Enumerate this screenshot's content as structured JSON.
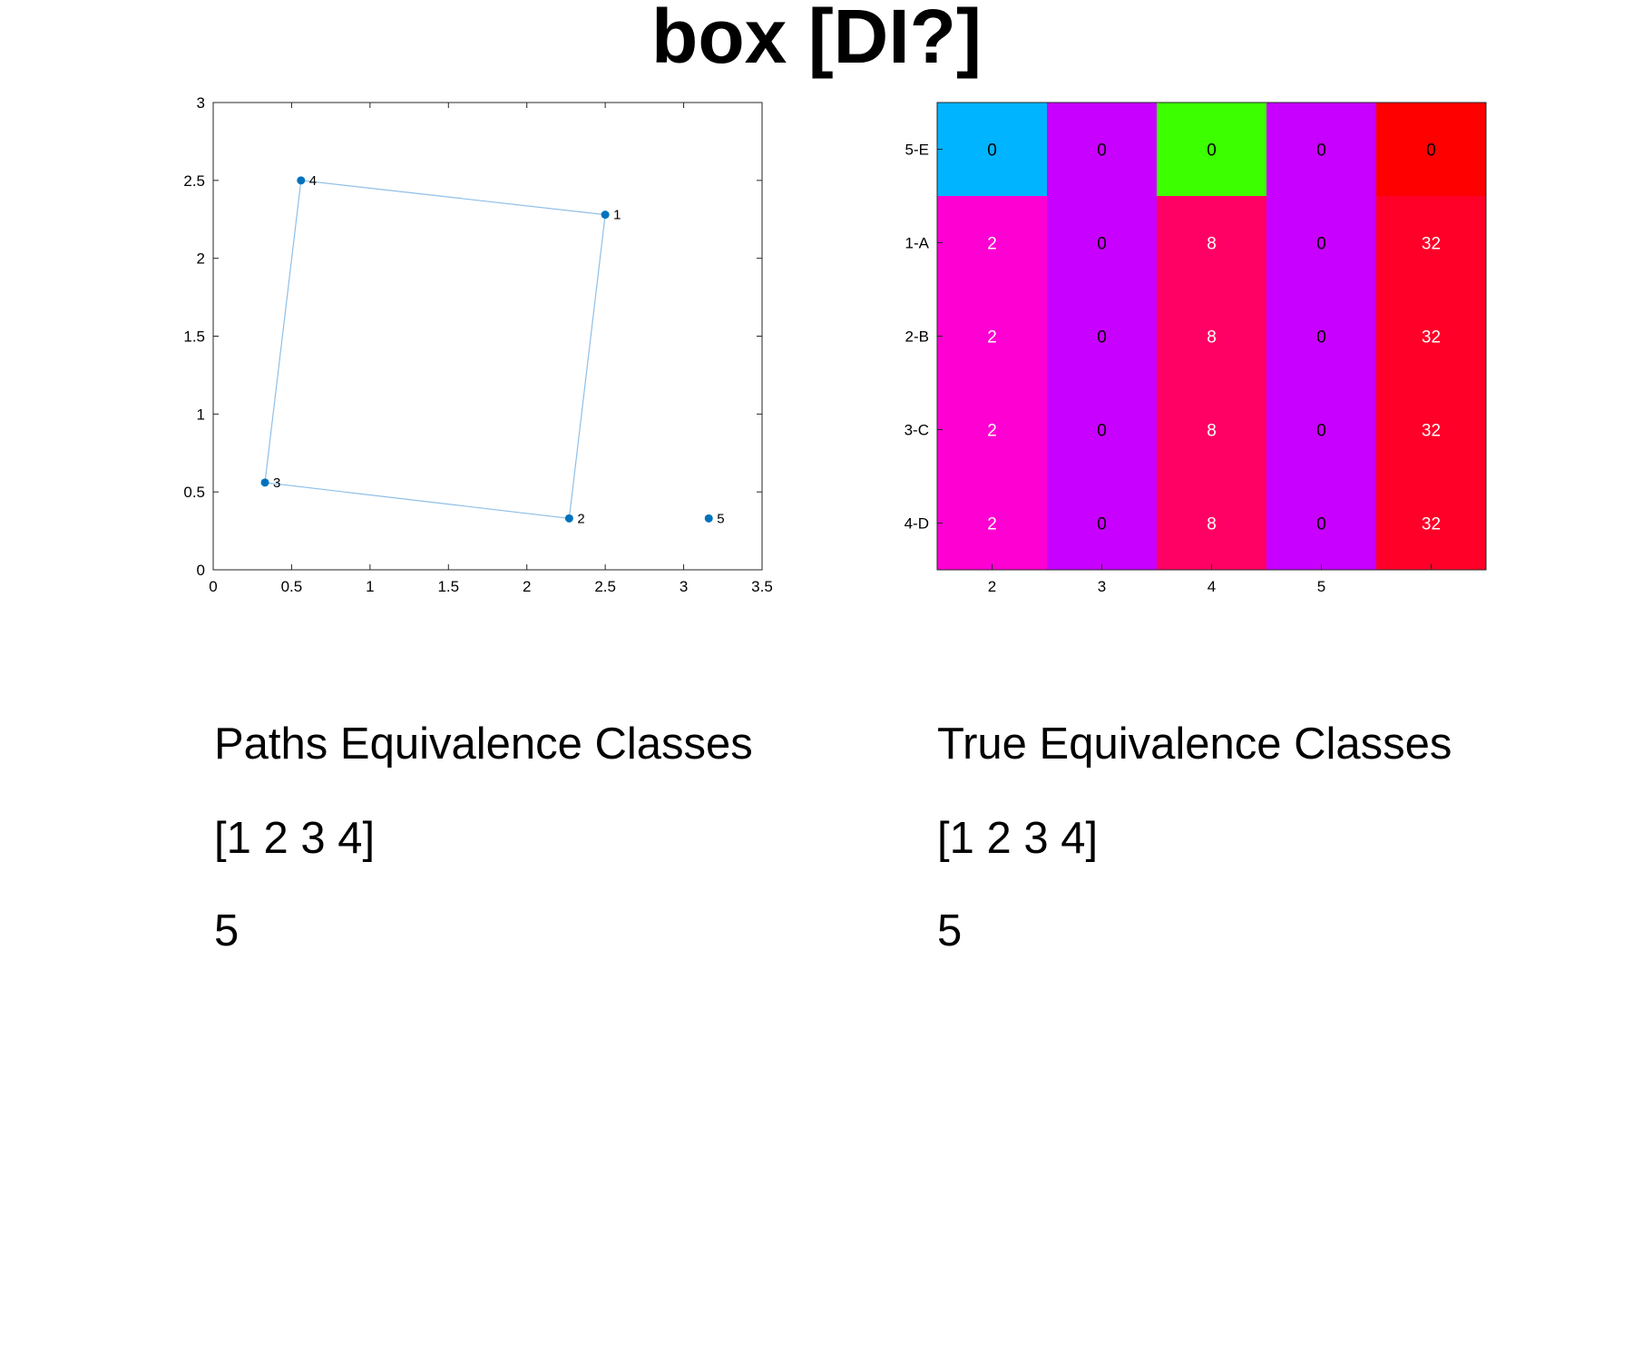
{
  "title": "box [DI?]",
  "chart_data": [
    {
      "type": "scatter",
      "title": "",
      "xlabel": "",
      "ylabel": "",
      "xlim": [
        0,
        3.5
      ],
      "ylim": [
        0,
        3
      ],
      "xticks": [
        0,
        0.5,
        1,
        1.5,
        2,
        2.5,
        3,
        3.5
      ],
      "yticks": [
        0,
        0.5,
        1,
        1.5,
        2,
        2.5,
        3
      ],
      "grid": false,
      "marker_color": "#0072BD",
      "line_color": "#8FBFE8",
      "points": [
        {
          "label": "1",
          "x": 2.5,
          "y": 2.28
        },
        {
          "label": "2",
          "x": 2.27,
          "y": 0.33
        },
        {
          "label": "3",
          "x": 0.33,
          "y": 0.56
        },
        {
          "label": "4",
          "x": 0.56,
          "y": 2.5
        },
        {
          "label": "5",
          "x": 3.16,
          "y": 0.33
        }
      ],
      "polygon": [
        "4",
        "1",
        "2",
        "3"
      ]
    },
    {
      "type": "heatmap",
      "row_labels": [
        "5-E",
        "1-A",
        "2-B",
        "3-C",
        "4-D"
      ],
      "col_labels": [
        "2",
        "3",
        "4",
        "5",
        ""
      ],
      "values": [
        [
          0,
          0,
          0,
          0,
          0
        ],
        [
          2,
          0,
          8,
          0,
          32
        ],
        [
          2,
          0,
          8,
          0,
          32
        ],
        [
          2,
          0,
          8,
          0,
          32
        ],
        [
          2,
          0,
          8,
          0,
          32
        ]
      ],
      "colors": [
        [
          "#00B4FF",
          "#C800FF",
          "#3CFF00",
          "#C800FF",
          "#FF0000"
        ],
        [
          "#FF00D2",
          "#C800FF",
          "#FF0064",
          "#C800FF",
          "#FF0028"
        ],
        [
          "#FF00D2",
          "#C800FF",
          "#FF0064",
          "#C800FF",
          "#FF0028"
        ],
        [
          "#FF00D2",
          "#C800FF",
          "#FF0064",
          "#C800FF",
          "#FF0028"
        ],
        [
          "#FF00D2",
          "#C800FF",
          "#FF0064",
          "#C800FF",
          "#FF0028"
        ]
      ],
      "text_colors": [
        [
          "#000000",
          "#000000",
          "#000000",
          "#000000",
          "#000000"
        ],
        [
          "#ffffff",
          "#000000",
          "#ffffff",
          "#000000",
          "#ffffff"
        ],
        [
          "#ffffff",
          "#000000",
          "#ffffff",
          "#000000",
          "#ffffff"
        ],
        [
          "#ffffff",
          "#000000",
          "#ffffff",
          "#000000",
          "#ffffff"
        ],
        [
          "#ffffff",
          "#000000",
          "#ffffff",
          "#000000",
          "#ffffff"
        ]
      ]
    }
  ],
  "paths_panel": {
    "heading": "Paths Equivalence Classes",
    "items": [
      "[1 2 3 4]",
      "5"
    ]
  },
  "true_panel": {
    "heading": "True Equivalence Classes",
    "items": [
      "[1 2 3 4]",
      "5"
    ]
  }
}
